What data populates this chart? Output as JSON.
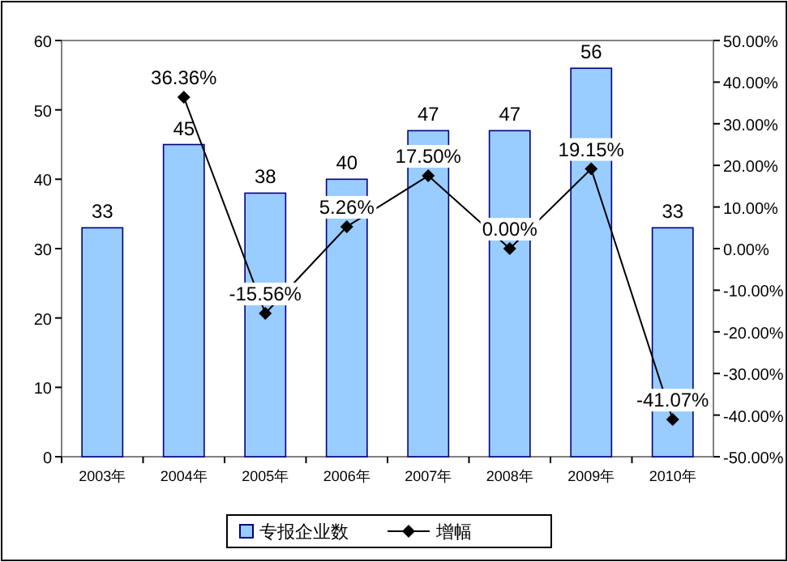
{
  "chart_data": {
    "type": "bar",
    "categories": [
      "2003年",
      "2004年",
      "2005年",
      "2006年",
      "2007年",
      "2008年",
      "2009年",
      "2010年"
    ],
    "series": [
      {
        "name": "专报企业数",
        "color": "#99ccff",
        "values": [
          33,
          45,
          38,
          40,
          47,
          47,
          56,
          33
        ],
        "value_labels": [
          "33",
          "45",
          "38",
          "40",
          "47",
          "47",
          "56",
          "33"
        ]
      },
      {
        "name": "增幅",
        "type": "line",
        "axis": "y2",
        "color": "#000000",
        "marker": "diamond",
        "values": [
          null,
          36.36,
          -15.56,
          5.26,
          17.5,
          0.0,
          19.15,
          -41.07
        ],
        "value_labels": [
          null,
          "36.36%",
          "-15.56%",
          "5.26%",
          "17.50%",
          "0.00%",
          "19.15%",
          "-41.07%"
        ]
      }
    ],
    "ylim": [
      0,
      60
    ],
    "yticks": [
      0,
      10,
      20,
      30,
      40,
      50,
      60
    ],
    "y2lim": [
      -50,
      50
    ],
    "y2ticks": [
      {
        "value": -50,
        "label": "-50.00%"
      },
      {
        "value": -40,
        "label": "-40.00%"
      },
      {
        "value": -30,
        "label": "-30.00%"
      },
      {
        "value": -20,
        "label": "-20.00%"
      },
      {
        "value": -10,
        "label": "-10.00%"
      },
      {
        "value": 0,
        "label": "0.00%"
      },
      {
        "value": 10,
        "label": "10.00%"
      },
      {
        "value": 20,
        "label": "20.00%"
      },
      {
        "value": 30,
        "label": "30.00%"
      },
      {
        "value": 40,
        "label": "40.00%"
      },
      {
        "value": 50,
        "label": "50.00%"
      }
    ],
    "legend": "bottom"
  }
}
